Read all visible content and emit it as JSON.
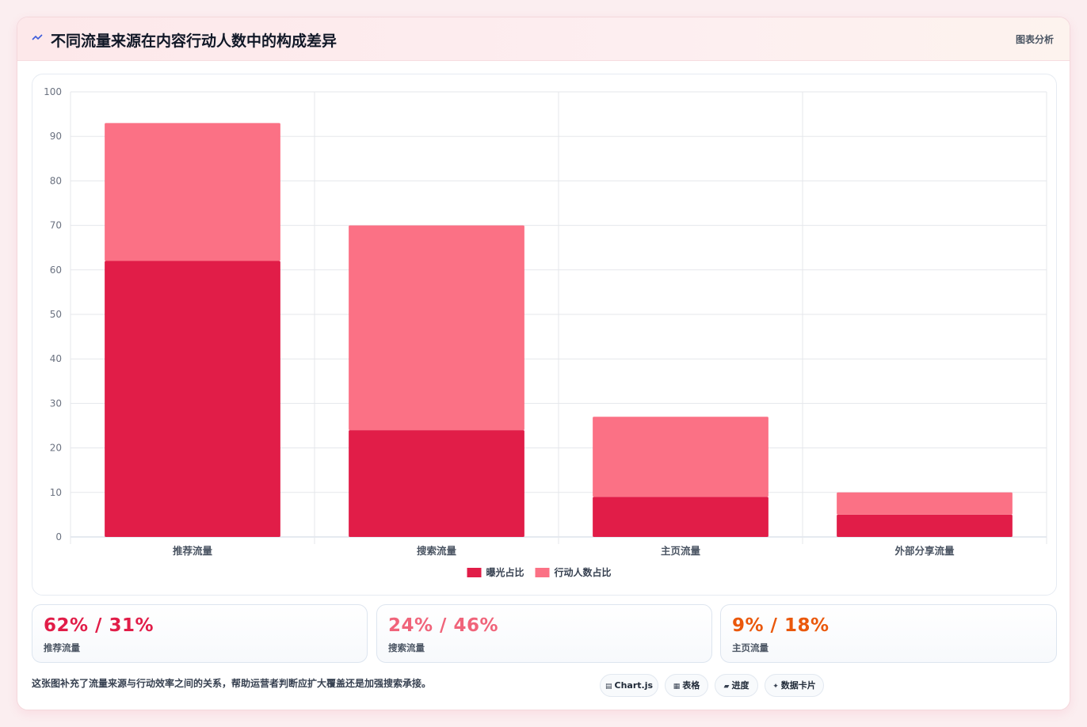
{
  "header": {
    "icon": "wave-icon",
    "title": "不同流量来源在内容行动人数中的构成差异",
    "tag": "图表分析"
  },
  "chart_data": {
    "type": "bar",
    "stacked": true,
    "categories": [
      "推荐流量",
      "搜索流量",
      "主页流量",
      "外部分享流量"
    ],
    "series": [
      {
        "name": "曝光占比",
        "values": [
          62,
          24,
          9,
          5
        ],
        "color": "#e11d48"
      },
      {
        "name": "行动人数占比",
        "values": [
          31,
          46,
          18,
          5
        ],
        "color": "#fb7185"
      }
    ],
    "ylim": [
      0,
      100
    ],
    "yticks": [
      0,
      10,
      20,
      30,
      40,
      50,
      60,
      70,
      80,
      90,
      100
    ],
    "grid": true,
    "legend": "bottom"
  },
  "stats": [
    {
      "value": "62% / 31%",
      "label": "推荐流量",
      "color": "#e11d48"
    },
    {
      "value": "24% / 46%",
      "label": "搜索流量",
      "color": "#f0647a"
    },
    {
      "value": "9% / 18%",
      "label": "主页流量",
      "color": "#ea580c"
    }
  ],
  "footnote": "这张图补充了流量来源与行动效率之间的关系，帮助运营者判断应扩大覆盖还是加强搜索承接。",
  "chips": [
    {
      "icon": "chart-icon",
      "glyph": "▤",
      "label": "Chart.js"
    },
    {
      "icon": "table-icon",
      "glyph": "▦",
      "label": "表格"
    },
    {
      "icon": "progress-icon",
      "glyph": "▰",
      "label": "进度"
    },
    {
      "icon": "sparkle-icon",
      "glyph": "✦",
      "label": "数据卡片"
    }
  ]
}
